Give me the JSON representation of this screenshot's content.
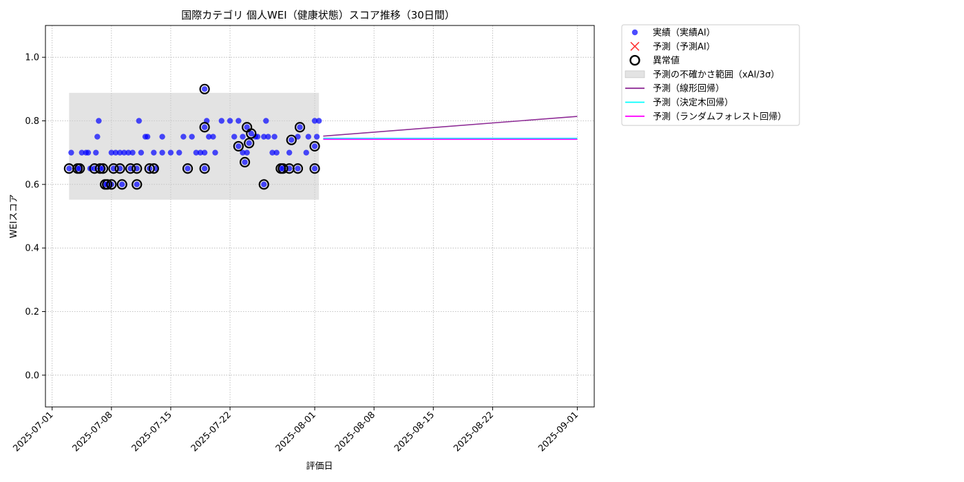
{
  "chart_data": {
    "type": "scatter",
    "title": "国際カテゴリ 個人WEI（健康状態）スコア推移（30日間）",
    "xlabel": "評価日",
    "ylabel": "WEIスコア",
    "xlim": [
      "2025-06-30T05:00",
      "2025-09-03"
    ],
    "ylim": [
      -0.1,
      1.1
    ],
    "grid": true,
    "x_ticks": [
      "2025-07-01",
      "2025-07-08",
      "2025-07-15",
      "2025-07-22",
      "2025-08-01",
      "2025-08-08",
      "2025-08-15",
      "2025-08-22",
      "2025-09-01"
    ],
    "y_ticks": [
      0.0,
      0.2,
      0.4,
      0.6,
      0.8,
      1.0
    ],
    "y_tick_labels": [
      "0.0",
      "0.2",
      "0.4",
      "0.6",
      "0.8",
      "1.0"
    ],
    "legend_placement": "outside upper right",
    "uncertainty_band": {
      "name": "予測の不確かさ範囲（xAI/3σ）",
      "x_start": "2025-07-03",
      "x_end": "2025-08-01T12:00",
      "y_low": 0.552,
      "y_high": 0.888,
      "color": "#cccccc"
    },
    "series": [
      {
        "name": "実績（実績AI）",
        "kind": "scatter",
        "color": "#0000ff",
        "points": [
          [
            "2025-07-03",
            0.65
          ],
          [
            "2025-07-03T06:00",
            0.7
          ],
          [
            "2025-07-04",
            0.65
          ],
          [
            "2025-07-04T06:00",
            0.65
          ],
          [
            "2025-07-04T12:00",
            0.7
          ],
          [
            "2025-07-05",
            0.7
          ],
          [
            "2025-07-05T06:00",
            0.7
          ],
          [
            "2025-07-05T12:00",
            0.65
          ],
          [
            "2025-07-06",
            0.65
          ],
          [
            "2025-07-06T04:00",
            0.7
          ],
          [
            "2025-07-06T08:00",
            0.75
          ],
          [
            "2025-07-06T12:00",
            0.8
          ],
          [
            "2025-07-06T16:00",
            0.65
          ],
          [
            "2025-07-07",
            0.65
          ],
          [
            "2025-07-07T06:00",
            0.6
          ],
          [
            "2025-07-07T12:00",
            0.6
          ],
          [
            "2025-07-08",
            0.6
          ],
          [
            "2025-07-08",
            0.7
          ],
          [
            "2025-07-08T06:00",
            0.65
          ],
          [
            "2025-07-08T12:00",
            0.7
          ],
          [
            "2025-07-09",
            0.65
          ],
          [
            "2025-07-09",
            0.7
          ],
          [
            "2025-07-09T06:00",
            0.6
          ],
          [
            "2025-07-09T12:00",
            0.7
          ],
          [
            "2025-07-10",
            0.7
          ],
          [
            "2025-07-10T06:00",
            0.65
          ],
          [
            "2025-07-10T12:00",
            0.7
          ],
          [
            "2025-07-11",
            0.6
          ],
          [
            "2025-07-11",
            0.65
          ],
          [
            "2025-07-11T06:00",
            0.8
          ],
          [
            "2025-07-11T12:00",
            0.7
          ],
          [
            "2025-07-12",
            0.75
          ],
          [
            "2025-07-12T06:00",
            0.75
          ],
          [
            "2025-07-12T12:00",
            0.65
          ],
          [
            "2025-07-13",
            0.7
          ],
          [
            "2025-07-13T06:00",
            0.65
          ],
          [
            "2025-07-14",
            0.75
          ],
          [
            "2025-07-14",
            0.7
          ],
          [
            "2025-07-15",
            0.7
          ],
          [
            "2025-07-16",
            0.7
          ],
          [
            "2025-07-16T12:00",
            0.75
          ],
          [
            "2025-07-17",
            0.65
          ],
          [
            "2025-07-17T12:00",
            0.75
          ],
          [
            "2025-07-18",
            0.7
          ],
          [
            "2025-07-18T12:00",
            0.7
          ],
          [
            "2025-07-19",
            0.7
          ],
          [
            "2025-07-19",
            0.65
          ],
          [
            "2025-07-19",
            0.78
          ],
          [
            "2025-07-19",
            0.9
          ],
          [
            "2025-07-19T06:00",
            0.8
          ],
          [
            "2025-07-19T12:00",
            0.75
          ],
          [
            "2025-07-20",
            0.75
          ],
          [
            "2025-07-20T06:00",
            0.7
          ],
          [
            "2025-07-21",
            0.8
          ],
          [
            "2025-07-22",
            0.8
          ],
          [
            "2025-07-22T12:00",
            0.75
          ],
          [
            "2025-07-23",
            0.72
          ],
          [
            "2025-07-23",
            0.8
          ],
          [
            "2025-07-23T12:00",
            0.75
          ],
          [
            "2025-07-23T12:00",
            0.7
          ],
          [
            "2025-07-23T18:00",
            0.67
          ],
          [
            "2025-07-24",
            0.78
          ],
          [
            "2025-07-24",
            0.7
          ],
          [
            "2025-07-24T06:00",
            0.73
          ],
          [
            "2025-07-24T12:00",
            0.76
          ],
          [
            "2025-07-25",
            0.75
          ],
          [
            "2025-07-25T06:00",
            0.75
          ],
          [
            "2025-07-26",
            0.75
          ],
          [
            "2025-07-26",
            0.6
          ],
          [
            "2025-07-26T06:00",
            0.8
          ],
          [
            "2025-07-26T12:00",
            0.75
          ],
          [
            "2025-07-27",
            0.7
          ],
          [
            "2025-07-27T06:00",
            0.75
          ],
          [
            "2025-07-27T12:00",
            0.7
          ],
          [
            "2025-07-28",
            0.65
          ],
          [
            "2025-07-28T06:00",
            0.65
          ],
          [
            "2025-07-29",
            0.65
          ],
          [
            "2025-07-29",
            0.7
          ],
          [
            "2025-07-29T06:00",
            0.74
          ],
          [
            "2025-07-30",
            0.65
          ],
          [
            "2025-07-30",
            0.75
          ],
          [
            "2025-07-30T06:00",
            0.78
          ],
          [
            "2025-07-31",
            0.7
          ],
          [
            "2025-07-31T06:00",
            0.75
          ],
          [
            "2025-08-01",
            0.8
          ],
          [
            "2025-08-01",
            0.72
          ],
          [
            "2025-08-01",
            0.65
          ],
          [
            "2025-08-01T06:00",
            0.75
          ],
          [
            "2025-08-01T12:00",
            0.8
          ]
        ]
      },
      {
        "name": "予測（予測AI）",
        "kind": "scatter",
        "marker": "x",
        "color": "#ff0000",
        "points": []
      },
      {
        "name": "異常値",
        "kind": "scatter",
        "marker": "ring",
        "color": "#000000",
        "points": [
          [
            "2025-07-03",
            0.65
          ],
          [
            "2025-07-04",
            0.65
          ],
          [
            "2025-07-04T06:00",
            0.65
          ],
          [
            "2025-07-06",
            0.65
          ],
          [
            "2025-07-06T16:00",
            0.65
          ],
          [
            "2025-07-07",
            0.65
          ],
          [
            "2025-07-07T06:00",
            0.6
          ],
          [
            "2025-07-07T12:00",
            0.6
          ],
          [
            "2025-07-08",
            0.6
          ],
          [
            "2025-07-08T06:00",
            0.65
          ],
          [
            "2025-07-09",
            0.65
          ],
          [
            "2025-07-09T06:00",
            0.6
          ],
          [
            "2025-07-10T06:00",
            0.65
          ],
          [
            "2025-07-11",
            0.6
          ],
          [
            "2025-07-11",
            0.65
          ],
          [
            "2025-07-12T12:00",
            0.65
          ],
          [
            "2025-07-13",
            0.65
          ],
          [
            "2025-07-17",
            0.65
          ],
          [
            "2025-07-19",
            0.65
          ],
          [
            "2025-07-19",
            0.78
          ],
          [
            "2025-07-19",
            0.9
          ],
          [
            "2025-07-23",
            0.72
          ],
          [
            "2025-07-23T18:00",
            0.67
          ],
          [
            "2025-07-24",
            0.78
          ],
          [
            "2025-07-24T06:00",
            0.73
          ],
          [
            "2025-07-24T12:00",
            0.76
          ],
          [
            "2025-07-26",
            0.6
          ],
          [
            "2025-07-28",
            0.65
          ],
          [
            "2025-07-28T06:00",
            0.65
          ],
          [
            "2025-07-29",
            0.65
          ],
          [
            "2025-07-29T06:00",
            0.74
          ],
          [
            "2025-07-30",
            0.65
          ],
          [
            "2025-07-30T06:00",
            0.78
          ],
          [
            "2025-08-01",
            0.72
          ],
          [
            "2025-08-01",
            0.65
          ]
        ]
      },
      {
        "name": "予測（線形回帰）",
        "kind": "line",
        "color": "#8e2c96",
        "points": [
          [
            "2025-08-02",
            0.752
          ],
          [
            "2025-09-01",
            0.814
          ]
        ]
      },
      {
        "name": "予測（決定木回帰）",
        "kind": "line",
        "color": "#00ffff",
        "points": [
          [
            "2025-08-02",
            0.745
          ],
          [
            "2025-09-01",
            0.745
          ]
        ]
      },
      {
        "name": "予測（ランダムフォレスト回帰）",
        "kind": "line",
        "color": "#ff00ff",
        "points": [
          [
            "2025-08-02",
            0.742
          ],
          [
            "2025-09-01",
            0.742
          ]
        ]
      }
    ]
  }
}
